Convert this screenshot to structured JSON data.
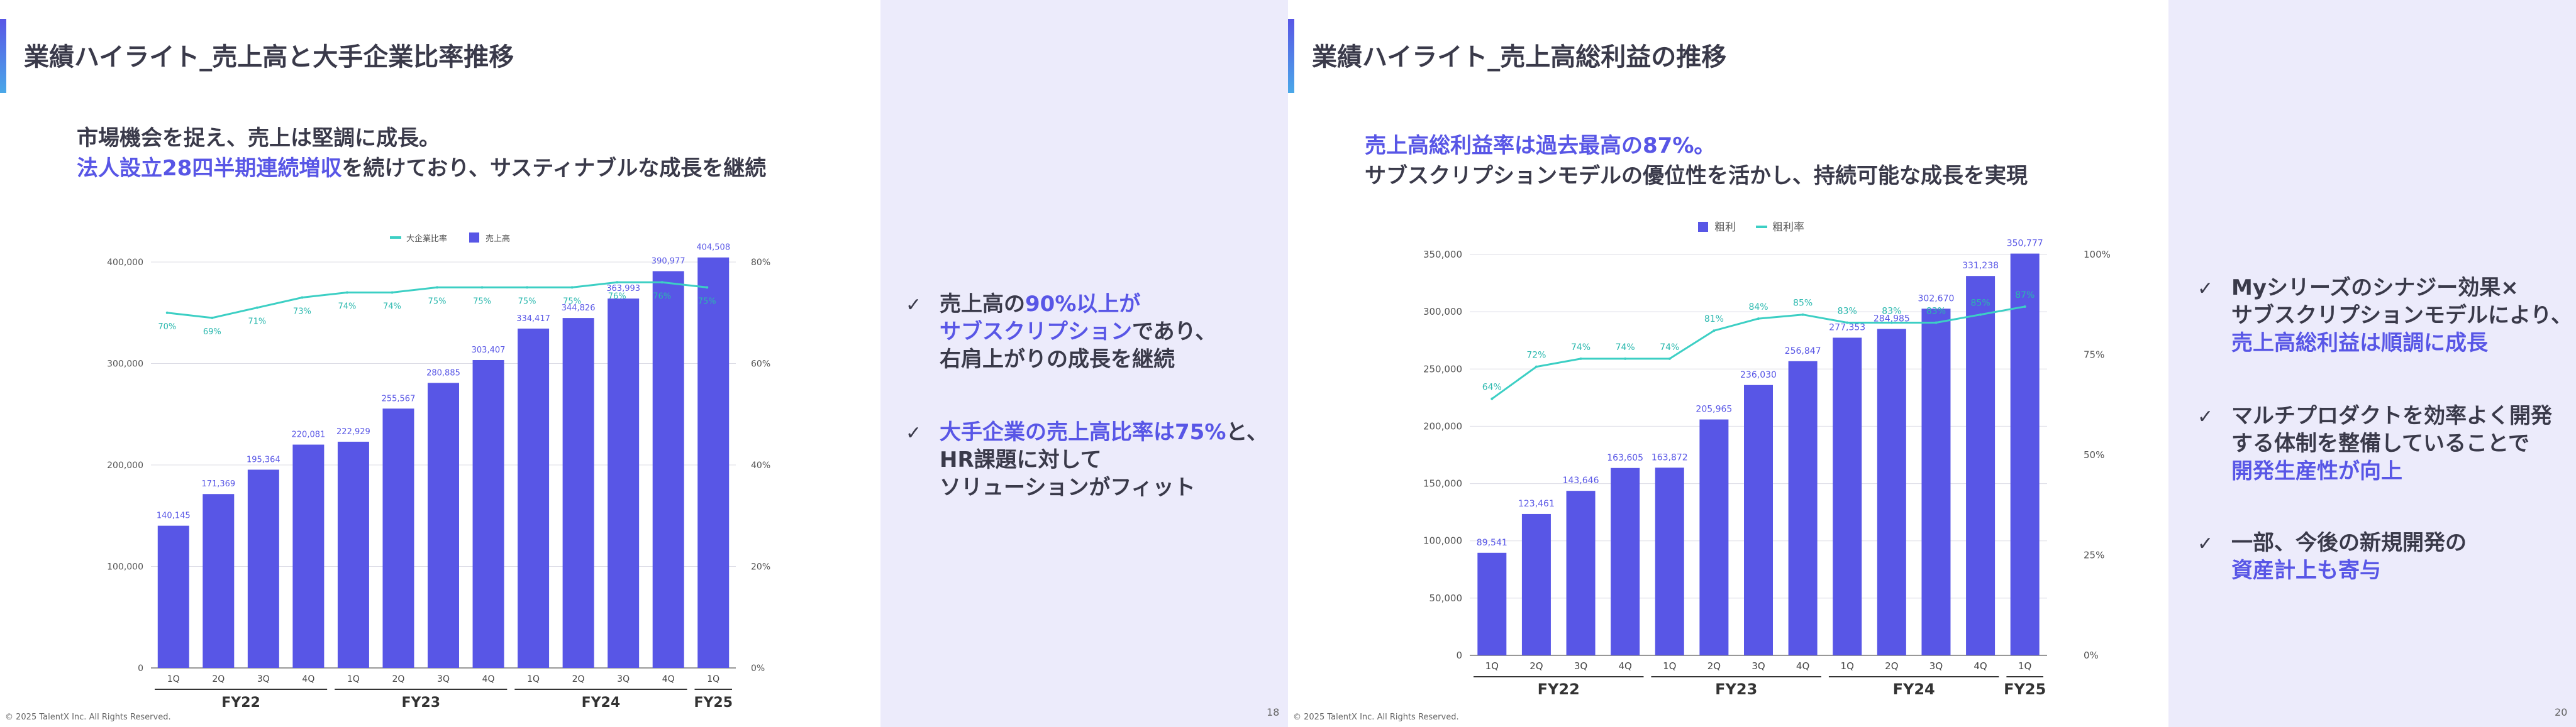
{
  "slides": [
    {
      "title": "業績ハイライト_売上高と大手企業比率推移",
      "lead": [
        [
          {
            "t": "市場機会を捉え、売上は堅調に成長。",
            "hl": false
          }
        ],
        [
          {
            "t": "法人設立28四半期連続増収",
            "hl": true
          },
          {
            "t": "を続けており、サスティナブルな成長を継続",
            "hl": false
          }
        ]
      ],
      "bullets": [
        [
          [
            {
              "t": "売上高の",
              "hl": false
            },
            {
              "t": "90%以上が",
              "hl": true
            }
          ],
          [
            {
              "t": "サブスクリプション",
              "hl": true
            },
            {
              "t": "であり、",
              "hl": false
            }
          ],
          [
            {
              "t": "右肩上がりの成長を継続",
              "hl": false
            }
          ]
        ],
        [
          [
            {
              "t": "大手企業の売上高比率は75%",
              "hl": true
            },
            {
              "t": "と、",
              "hl": false
            }
          ],
          [
            {
              "t": "HR課題に対して",
              "hl": false
            }
          ],
          [
            {
              "t": "ソリューションがフィット",
              "hl": false
            }
          ]
        ]
      ],
      "footer": "© 2025 TalentX Inc. All Rights Reserved.",
      "page": "18"
    },
    {
      "title": "業績ハイライト_売上高総利益の推移",
      "lead": [
        [
          {
            "t": "売上高総利益率は過去最高の87%。",
            "hl": true
          }
        ],
        [
          {
            "t": "サブスクリプションモデルの優位性を活かし、持続可能な成長を実現",
            "hl": false
          }
        ]
      ],
      "bullets": [
        [
          [
            {
              "t": "Myシリーズのシナジー効果×",
              "hl": false
            }
          ],
          [
            {
              "t": "サブスクリプションモデルにより、",
              "hl": false
            }
          ],
          [
            {
              "t": "売上高総利益は順調に成長",
              "hl": true
            }
          ]
        ],
        [
          [
            {
              "t": "マルチプロダクトを効率よく開発",
              "hl": false
            }
          ],
          [
            {
              "t": "する体制を整備していることで",
              "hl": false
            }
          ],
          [
            {
              "t": "開発生産性が向上",
              "hl": true
            }
          ]
        ],
        [
          [
            {
              "t": "一部、今後の新規開発の",
              "hl": false
            }
          ],
          [
            {
              "t": "資産計上も寄与",
              "hl": true
            }
          ]
        ]
      ],
      "footer": "© 2025 TalentX Inc. All Rights Reserved.",
      "page": "20"
    }
  ],
  "colors": {
    "bar": "#5856e6",
    "line": "#3ccfc4",
    "accent": "#5856e6",
    "text": "#3a3a4a",
    "side_bg": "#ecebfb"
  },
  "icons": [
    "check-icon"
  ],
  "chart_data": [
    {
      "type": "bar",
      "combo": "bar+line",
      "legend": [
        "大企業比率",
        "売上高"
      ],
      "legend_position": "top-center",
      "categories": [
        "1Q",
        "2Q",
        "3Q",
        "4Q",
        "1Q",
        "2Q",
        "3Q",
        "4Q",
        "1Q",
        "2Q",
        "3Q",
        "4Q",
        "1Q"
      ],
      "groups": [
        {
          "label": "FY22",
          "count": 4
        },
        {
          "label": "FY23",
          "count": 4
        },
        {
          "label": "FY24",
          "count": 4
        },
        {
          "label": "FY25",
          "count": 1
        }
      ],
      "series": [
        {
          "name": "売上高",
          "type": "bar",
          "axis": "left",
          "values": [
            140145,
            171369,
            195364,
            220081,
            222929,
            255567,
            280885,
            303407,
            334417,
            344826,
            363993,
            390977,
            404508
          ],
          "labels": [
            "140,145",
            "171,369",
            "195,364",
            "220,081",
            "222,929",
            "255,567",
            "280,885",
            "303,407",
            "334,417",
            "344,826",
            "363,993",
            "390,977",
            "404,508"
          ]
        },
        {
          "name": "大企業比率",
          "type": "line",
          "axis": "right",
          "values": [
            70,
            69,
            71,
            73,
            74,
            74,
            75,
            75,
            75,
            75,
            76,
            76,
            75
          ],
          "labels": [
            "70%",
            "69%",
            "71%",
            "73%",
            "74%",
            "74%",
            "75%",
            "75%",
            "75%",
            "75%",
            "76%",
            "76%",
            "75%"
          ]
        }
      ],
      "y_left": {
        "min": 0,
        "max": 400000,
        "ticks": [
          0,
          100000,
          200000,
          300000,
          400000
        ],
        "tick_labels": [
          "0",
          "100,000",
          "200,000",
          "300,000",
          "400,000"
        ]
      },
      "y_right": {
        "min": 0,
        "max": 80,
        "ticks": [
          0,
          20,
          40,
          60,
          80
        ],
        "tick_labels": [
          "0%",
          "20%",
          "40%",
          "60%",
          "80%"
        ]
      },
      "grid": true
    },
    {
      "type": "bar",
      "combo": "bar+line",
      "legend": [
        "粗利",
        "粗利率"
      ],
      "legend_position": "top-center",
      "categories": [
        "1Q",
        "2Q",
        "3Q",
        "4Q",
        "1Q",
        "2Q",
        "3Q",
        "4Q",
        "1Q",
        "2Q",
        "3Q",
        "4Q",
        "1Q"
      ],
      "groups": [
        {
          "label": "FY22",
          "count": 4
        },
        {
          "label": "FY23",
          "count": 4
        },
        {
          "label": "FY24",
          "count": 4
        },
        {
          "label": "FY25",
          "count": 1
        }
      ],
      "series": [
        {
          "name": "粗利",
          "type": "bar",
          "axis": "left",
          "values": [
            89541,
            123461,
            143646,
            163605,
            163872,
            205965,
            236030,
            256847,
            277353,
            284985,
            302670,
            331238,
            350777
          ],
          "labels": [
            "89,541",
            "123,461",
            "143,646",
            "163,605",
            "163,872",
            "205,965",
            "236,030",
            "256,847",
            "277,353",
            "284,985",
            "302,670",
            "331,238",
            "350,777"
          ]
        },
        {
          "name": "粗利率",
          "type": "line",
          "axis": "right",
          "values": [
            64,
            72,
            74,
            74,
            74,
            81,
            84,
            85,
            83,
            83,
            83,
            85,
            87
          ],
          "labels": [
            "64%",
            "72%",
            "74%",
            "74%",
            "74%",
            "81%",
            "84%",
            "85%",
            "83%",
            "83%",
            "83%",
            "85%",
            "87%"
          ]
        }
      ],
      "y_left": {
        "min": 0,
        "max": 350000,
        "ticks": [
          0,
          50000,
          100000,
          150000,
          200000,
          250000,
          300000,
          350000
        ],
        "tick_labels": [
          "0",
          "50,000",
          "100,000",
          "150,000",
          "200,000",
          "250,000",
          "300,000",
          "350,000"
        ]
      },
      "y_right": {
        "min": 0,
        "max": 100,
        "ticks": [
          0,
          25,
          50,
          75,
          100
        ],
        "tick_labels": [
          "0%",
          "25%",
          "50%",
          "75%",
          "100%"
        ]
      },
      "grid": true
    }
  ]
}
